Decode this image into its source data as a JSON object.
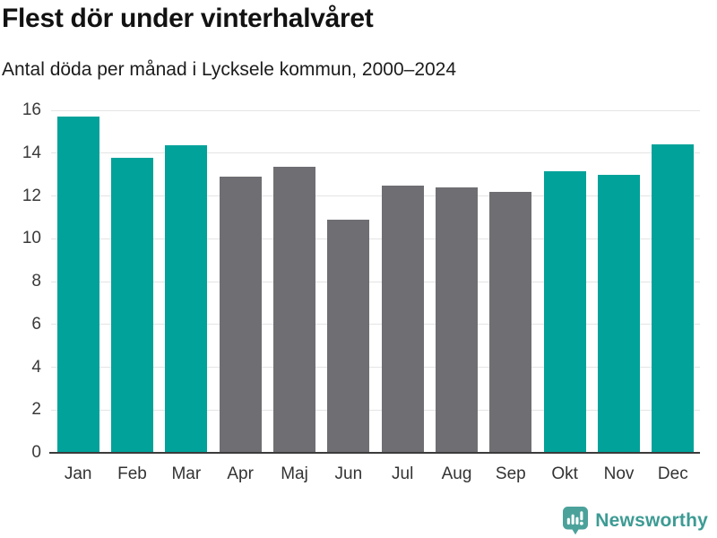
{
  "header": {
    "title": "Flest dör under vinterhalvåret",
    "subtitle": "Antal döda per månad i Lycksele kommun, 2000–2024"
  },
  "chart_data": {
    "type": "bar",
    "title": "Flest dör under vinterhalvåret",
    "subtitle": "Antal döda per månad i Lycksele kommun, 2000–2024",
    "categories": [
      "Jan",
      "Feb",
      "Mar",
      "Apr",
      "Maj",
      "Jun",
      "Jul",
      "Aug",
      "Sep",
      "Okt",
      "Nov",
      "Dec"
    ],
    "values": [
      15.7,
      13.8,
      14.35,
      12.9,
      13.35,
      10.9,
      12.5,
      12.4,
      12.2,
      13.15,
      13.0,
      14.4
    ],
    "bar_colors": [
      "teal",
      "teal",
      "teal",
      "gray",
      "gray",
      "gray",
      "gray",
      "gray",
      "gray",
      "teal",
      "teal",
      "teal"
    ],
    "colors": {
      "teal": "#00a29a",
      "gray": "#6f6e73"
    },
    "color_meaning": {
      "teal": "winter half-year months",
      "gray": "summer half-year months"
    },
    "xlabel": "",
    "ylabel": "",
    "ylim": [
      0,
      16
    ],
    "yticks": [
      0,
      2,
      4,
      6,
      8,
      10,
      12,
      14,
      16
    ],
    "grid": "horizontal",
    "legend": "none",
    "gridline_color": "#e4e4e4",
    "axis_line_color": "#3b3b3b"
  },
  "footer": {
    "brand": "Newsworthy",
    "logo_icon": "bar-chart-speech-bubble-icon",
    "brand_color": "#3d9b94",
    "logo_bg_color": "#4ba29b"
  }
}
